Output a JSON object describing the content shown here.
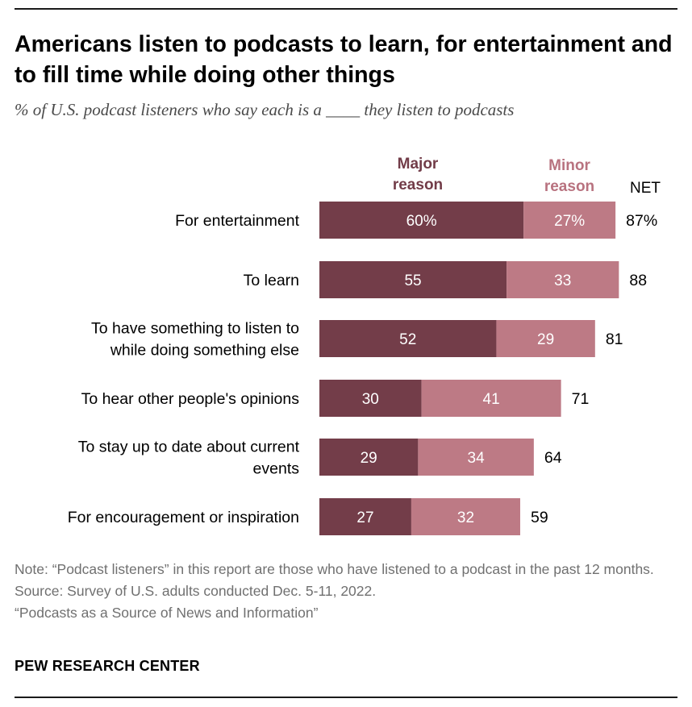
{
  "title": "Americans listen to podcasts to learn, for entertainment and to fill time while doing other things",
  "subtitle": "% of U.S. podcast listeners who say each is a ____ they listen to podcasts",
  "colors": {
    "major": "#733d49",
    "minor": "#bd7a85",
    "major_text": "#723c48",
    "minor_text": "#b8727f"
  },
  "headers": {
    "major": "Major reason",
    "minor": "Minor reason",
    "net": "NET"
  },
  "chart_data": {
    "type": "bar",
    "orientation": "horizontal",
    "stacked": true,
    "categories": [
      "For entertainment",
      "To learn",
      "To have something to listen to while doing something else",
      "To hear other people's opinions",
      "To stay up to date about current events",
      "For encouragement or inspiration"
    ],
    "series": [
      {
        "name": "Major reason",
        "values": [
          60,
          55,
          52,
          30,
          29,
          27
        ]
      },
      {
        "name": "Minor reason",
        "values": [
          27,
          33,
          29,
          41,
          34,
          32
        ]
      }
    ],
    "net": [
      87,
      88,
      81,
      71,
      64,
      59
    ],
    "value_labels": {
      "major": [
        "60%",
        "55",
        "52",
        "30",
        "29",
        "27"
      ],
      "minor": [
        "27%",
        "33",
        "29",
        "41",
        "34",
        "32"
      ],
      "net": [
        "87%",
        "88",
        "81",
        "71",
        "64",
        "59"
      ]
    },
    "xlim": [
      0,
      100
    ]
  },
  "notes": [
    "Note: “Podcast listeners” in this report are those who have listened to a podcast in the past 12 months.",
    "Source: Survey of U.S. adults conducted Dec. 5-11, 2022.",
    "“Podcasts as a Source of News and Information”"
  ],
  "brand": "PEW RESEARCH CENTER"
}
